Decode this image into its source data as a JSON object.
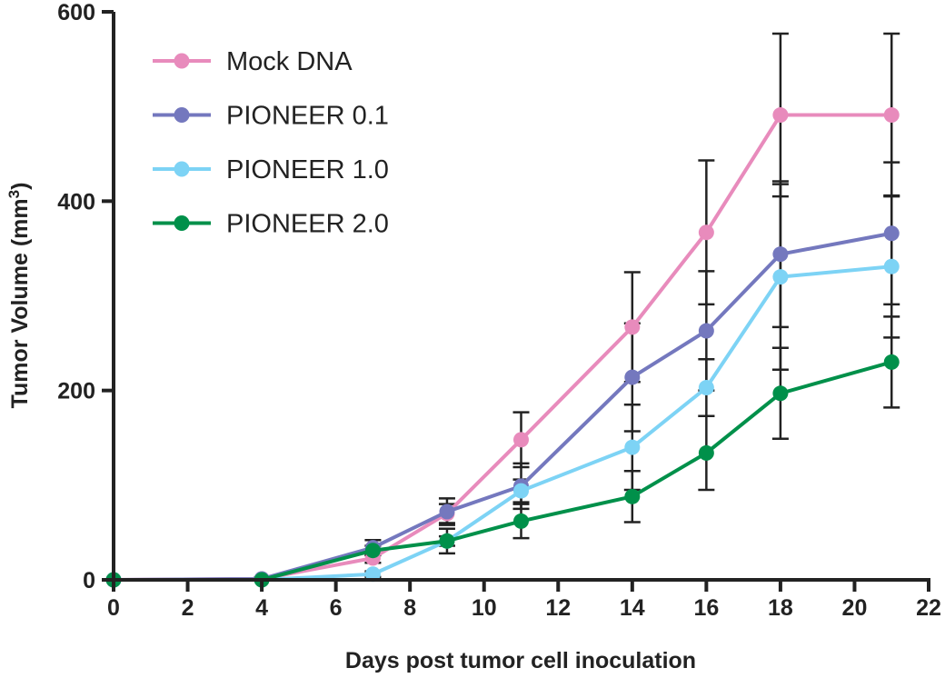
{
  "chart_data": {
    "type": "line",
    "title": "",
    "xlabel": "Days post tumor cell inoculation",
    "ylabel": "Tumor Volume (mm",
    "ylabel_sup": "3",
    "ylabel_close": ")",
    "xlim": [
      0,
      22
    ],
    "ylim": [
      0,
      600
    ],
    "xticks": [
      0,
      2,
      4,
      6,
      8,
      10,
      12,
      14,
      16,
      18,
      20,
      22
    ],
    "yticks": [
      0,
      200,
      400,
      600
    ],
    "grid": false,
    "legend_placement": "top-left",
    "x": [
      0,
      4,
      7,
      9,
      11,
      14,
      16,
      18,
      21
    ],
    "series": [
      {
        "name": "Mock DNA",
        "color": "#E88BBC",
        "values": [
          0,
          1,
          23,
          70,
          148,
          267,
          367,
          491,
          491
        ],
        "errors": [
          0,
          1,
          5,
          10,
          29,
          58,
          76,
          86,
          86
        ]
      },
      {
        "name": "PIONEER 0.1",
        "color": "#7478BE",
        "values": [
          0,
          1,
          34,
          72,
          99,
          214,
          263,
          344,
          366
        ],
        "errors": [
          0,
          1,
          8,
          14,
          24,
          57,
          63,
          77,
          75
        ]
      },
      {
        "name": "PIONEER 1.0",
        "color": "#7DD3F5",
        "values": [
          0,
          0,
          6,
          41,
          94,
          140,
          203,
          320,
          331
        ],
        "errors": [
          0,
          1,
          3,
          13,
          12,
          45,
          30,
          98,
          75
        ]
      },
      {
        "name": "PIONEER 2.0",
        "color": "#00904A",
        "values": [
          0,
          0,
          31,
          41,
          62,
          88,
          134,
          197,
          230
        ],
        "errors": [
          0,
          1,
          5,
          5,
          18,
          27,
          39,
          48,
          48
        ]
      }
    ]
  }
}
